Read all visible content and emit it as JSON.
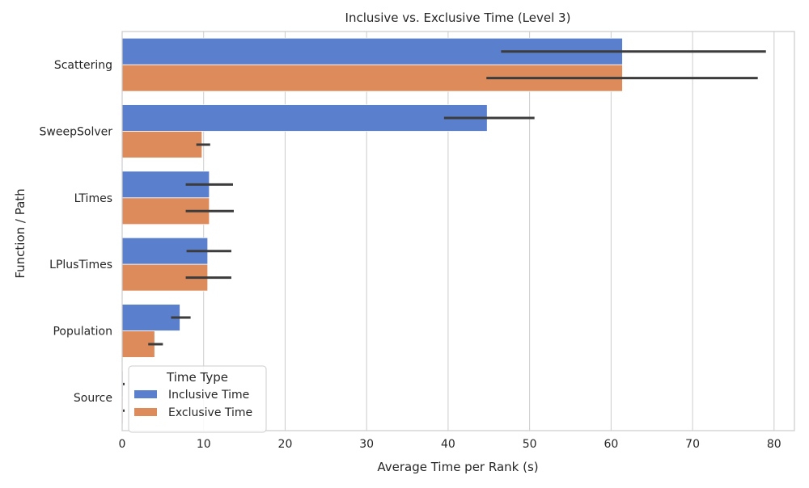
{
  "chart_data": {
    "type": "bar",
    "orientation": "horizontal",
    "title": "Inclusive vs. Exclusive Time (Level 3)",
    "xlabel": "Average Time per Rank (s)",
    "ylabel": "Function / Path",
    "xlim": [
      0,
      82.5
    ],
    "xticks": [
      0,
      10,
      20,
      30,
      40,
      50,
      60,
      70,
      80
    ],
    "grid": true,
    "categories": [
      "Scattering",
      "SweepSolver",
      "LTimes",
      "LPlusTimes",
      "Population",
      "Source"
    ],
    "series": [
      {
        "name": "Inclusive Time",
        "color": "#5a7fcc",
        "values": [
          61.4,
          44.8,
          10.7,
          10.5,
          7.1,
          0.1
        ],
        "error_low": [
          46.5,
          39.5,
          7.8,
          7.9,
          6.0,
          0.1
        ],
        "error_high": [
          79.0,
          50.6,
          13.6,
          13.4,
          8.4,
          0.3
        ]
      },
      {
        "name": "Exclusive Time",
        "color": "#de8b5c",
        "values": [
          61.4,
          9.8,
          10.7,
          10.5,
          4.0,
          0.1
        ],
        "error_low": [
          44.7,
          9.1,
          7.8,
          7.8,
          3.2,
          0.1
        ],
        "error_high": [
          78.0,
          10.8,
          13.7,
          13.4,
          5.0,
          0.3
        ]
      }
    ],
    "legend": {
      "title": "Time Type",
      "placement": "lower-left"
    },
    "error_color": "#3c3c3c",
    "grid_color": "#cccccc",
    "axis_color": "#cccccc"
  }
}
